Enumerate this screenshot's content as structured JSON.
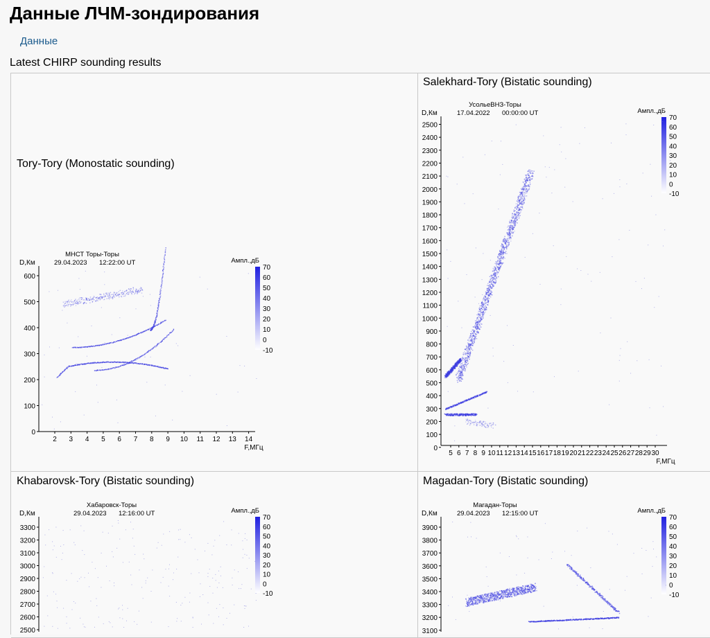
{
  "header": {
    "title": "Данные ЛЧМ-зондирования"
  },
  "nav": {
    "data_link": "Данные"
  },
  "section": {
    "heading": "Latest CHIRP sounding results"
  },
  "colorbar": {
    "label": "Ампл.,дБ",
    "ticks": [
      "70",
      "60",
      "50",
      "40",
      "30",
      "20",
      "10",
      "0",
      "-10"
    ],
    "color_max": "#2020e0",
    "color_min": "#ffffff"
  },
  "panels": [
    {
      "title": "Tory-Tory (Monostatic sounding)",
      "station": "МНСТ Торы-Торы",
      "date": "29.04.2023",
      "time": "12:22:00 UT",
      "ylabel": "D,Км",
      "xlabel": "F,МГц",
      "yticks": [
        "600",
        "500",
        "400",
        "300",
        "200",
        "100",
        "0"
      ],
      "xticks": [
        "2",
        "3",
        "4",
        "5",
        "6",
        "7",
        "8",
        "9",
        "10",
        "11",
        "12",
        "13",
        "14"
      ]
    },
    {
      "title": "Salekhard-Tory (Bistatic sounding)",
      "station": "УсольеВНЗ-Торы",
      "date": "17.04.2022",
      "time": "00:00:00 UT",
      "ylabel": "D,Км",
      "xlabel": "F,МГц",
      "yticks": [
        "2500",
        "2400",
        "2300",
        "2200",
        "2100",
        "2000",
        "1900",
        "1800",
        "1700",
        "1600",
        "1500",
        "1400",
        "1300",
        "1200",
        "1100",
        "1000",
        "900",
        "800",
        "700",
        "600",
        "500",
        "400",
        "300",
        "200",
        "100",
        "0"
      ],
      "xticks": [
        "5",
        "6",
        "7",
        "8",
        "9",
        "10",
        "11",
        "12",
        "13",
        "14",
        "15",
        "16",
        "17",
        "18",
        "19",
        "20",
        "21",
        "22",
        "23",
        "24",
        "25",
        "26",
        "27",
        "28",
        "29",
        "30"
      ]
    },
    {
      "title": "Khabarovsk-Tory (Bistatic sounding)",
      "station": "Хабаровск-Торы",
      "date": "29.04.2023",
      "time": "12:16:00 UT",
      "ylabel": "D,Км",
      "yticks": [
        "3300",
        "3200",
        "3100",
        "3000",
        "2900",
        "2800",
        "2700",
        "2600",
        "2500"
      ]
    },
    {
      "title": "Magadan-Tory (Bistatic sounding)",
      "station": "Магадан-Торы",
      "date": "29.04.2023",
      "time": "12:15:00 UT",
      "ylabel": "D,Км",
      "yticks": [
        "3900",
        "3800",
        "3700",
        "3600",
        "3500",
        "3400",
        "3300",
        "3200",
        "3100"
      ]
    }
  ]
}
